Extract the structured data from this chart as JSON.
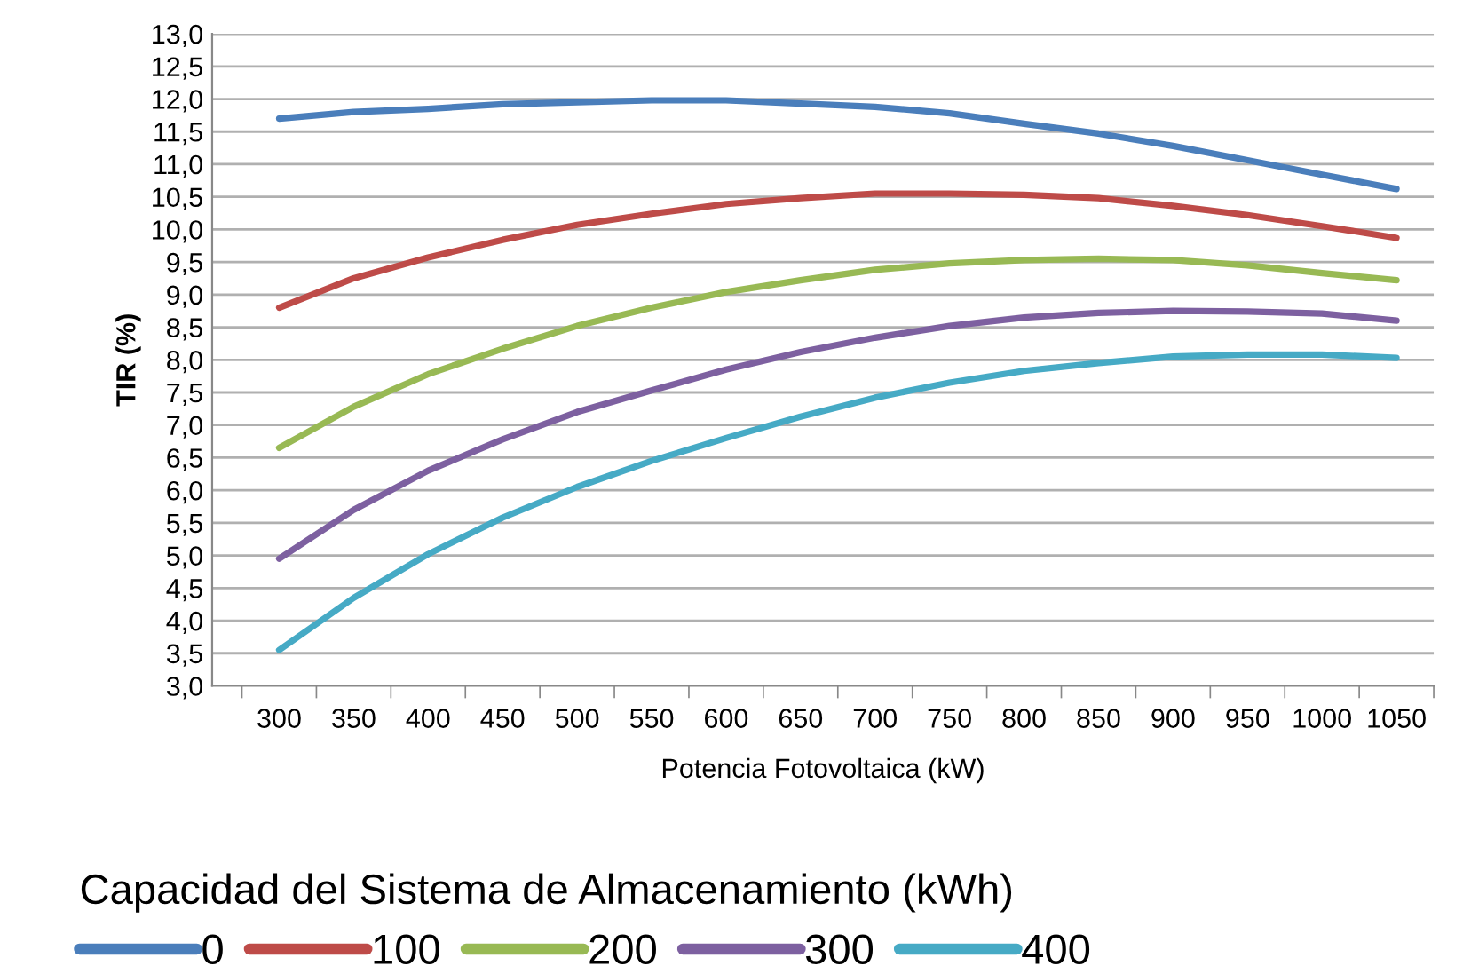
{
  "chart_data": {
    "type": "line",
    "xlabel": "Potencia Fotovoltaica (kW)",
    "ylabel": "TIR (%)",
    "legend_title": "Capacidad del Sistema de Almacenamiento (kWh)",
    "categories": [
      "300",
      "350",
      "400",
      "450",
      "500",
      "550",
      "600",
      "650",
      "700",
      "750",
      "800",
      "850",
      "900",
      "950",
      "1000",
      "1050"
    ],
    "series": [
      {
        "name": "0",
        "color": "#4a7ebb",
        "values": [
          11.7,
          11.8,
          11.85,
          11.92,
          11.95,
          11.98,
          11.98,
          11.93,
          11.88,
          11.78,
          11.62,
          11.47,
          11.28,
          11.06,
          10.84,
          10.62
        ]
      },
      {
        "name": "100",
        "color": "#be4b48",
        "values": [
          8.8,
          9.25,
          9.57,
          9.84,
          10.07,
          10.24,
          10.39,
          10.48,
          10.55,
          10.55,
          10.53,
          10.48,
          10.36,
          10.22,
          10.05,
          9.87
        ]
      },
      {
        "name": "200",
        "color": "#98b954",
        "values": [
          6.65,
          7.28,
          7.78,
          8.17,
          8.52,
          8.8,
          9.04,
          9.22,
          9.38,
          9.48,
          9.53,
          9.55,
          9.53,
          9.45,
          9.33,
          9.22
        ]
      },
      {
        "name": "300",
        "color": "#7d60a0",
        "values": [
          4.95,
          5.7,
          6.3,
          6.78,
          7.2,
          7.53,
          7.85,
          8.12,
          8.34,
          8.52,
          8.65,
          8.72,
          8.75,
          8.74,
          8.71,
          8.6
        ]
      },
      {
        "name": "400",
        "color": "#46aac5",
        "values": [
          3.55,
          4.35,
          5.02,
          5.58,
          6.05,
          6.45,
          6.8,
          7.13,
          7.42,
          7.65,
          7.83,
          7.95,
          8.05,
          8.08,
          8.08,
          8.03
        ]
      }
    ],
    "ylim": [
      3.0,
      13.0
    ],
    "yticks": [
      {
        "value": 3.0,
        "label": "3,0"
      },
      {
        "value": 3.5,
        "label": "3,5"
      },
      {
        "value": 4.0,
        "label": "4,0"
      },
      {
        "value": 4.5,
        "label": "4,5"
      },
      {
        "value": 5.0,
        "label": "5,0"
      },
      {
        "value": 5.5,
        "label": "5,5"
      },
      {
        "value": 6.0,
        "label": "6,0"
      },
      {
        "value": 6.5,
        "label": "6,5"
      },
      {
        "value": 7.0,
        "label": "7,0"
      },
      {
        "value": 7.5,
        "label": "7,5"
      },
      {
        "value": 8.0,
        "label": "8,0"
      },
      {
        "value": 8.5,
        "label": "8,5"
      },
      {
        "value": 9.0,
        "label": "9,0"
      },
      {
        "value": 9.5,
        "label": "9,5"
      },
      {
        "value": 10.0,
        "label": "10,0"
      },
      {
        "value": 10.5,
        "label": "10,5"
      },
      {
        "value": 11.0,
        "label": "11,0"
      },
      {
        "value": 11.5,
        "label": "11,5"
      },
      {
        "value": 12.0,
        "label": "12,0"
      },
      {
        "value": 12.5,
        "label": "12,5"
      },
      {
        "value": 13.0,
        "label": "13,0"
      }
    ],
    "grid": "y",
    "legend": "bottom",
    "marker": "none",
    "line_style": "solid"
  }
}
